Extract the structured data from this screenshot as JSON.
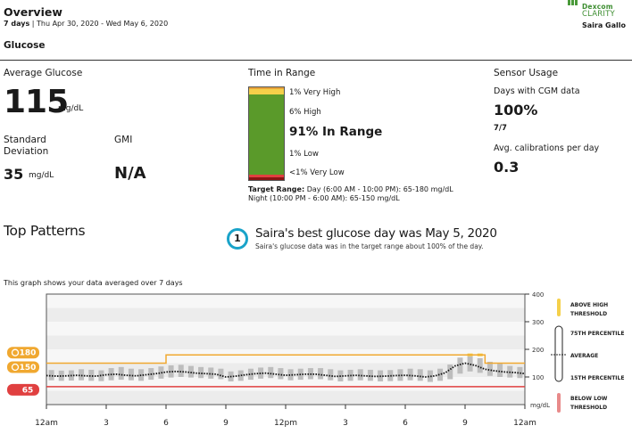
{
  "header": {
    "title": "Overview",
    "range_days": "7 days",
    "range_sep": "|",
    "range_dates": "Thu Apr 30, 2020 - Wed May 6, 2020",
    "logo_line1": "Dexcom",
    "logo_line2": "CLARITY",
    "patient_name": "Saira Gallo",
    "brand_color": "#4a9a3a"
  },
  "section_title": "Glucose",
  "avg_glucose": {
    "label": "Average Glucose",
    "value": "115",
    "unit": "mg/dL"
  },
  "std_dev": {
    "label": "Standard Deviation",
    "value": "35",
    "unit": "mg/dL"
  },
  "gmi": {
    "label": "GMI",
    "value": "N/A"
  },
  "time_in_range": {
    "label": "Time in Range",
    "very_high": "1% Very High",
    "high": "6% High",
    "in_range": "91% In Range",
    "low": "1% Low",
    "very_low": "<1% Very Low",
    "target_label": "Target Range:",
    "target_day": "Day (6:00 AM - 10:00 PM): 65-180 mg/dL",
    "target_night": "Night (10:00 PM - 6:00 AM): 65-150 mg/dL",
    "colors": {
      "very_high": "#e8a33a",
      "high": "#f5d04a",
      "in_range": "#5a9a2a",
      "low": "#e04040",
      "very_low": "#8a1414"
    }
  },
  "sensor_usage": {
    "label": "Sensor Usage",
    "days_label": "Days with CGM data",
    "days_value": "100%",
    "days_count": "7/7",
    "cal_label": "Avg. calibrations per day",
    "cal_value": "0.3"
  },
  "top_patterns": {
    "title": "Top Patterns",
    "badge": "1",
    "headline": "Saira's best glucose day was May 5, 2020",
    "subtext": "Saira's glucose data was in the target range about 100% of the day."
  },
  "graph_note": "This graph shows your data averaged over 7 days",
  "chart_data": {
    "type": "line",
    "x_ticks": [
      "12am",
      "3",
      "6",
      "9",
      "12pm",
      "3",
      "6",
      "9",
      "12am"
    ],
    "y_ticks": [
      "400",
      "300",
      "200",
      "100"
    ],
    "y_unit": "mg/dL",
    "ylim": [
      0,
      400
    ],
    "high_threshold_night": 150,
    "high_threshold_day": 180,
    "low_threshold": 65,
    "threshold_badges": {
      "high_day": "180",
      "high_night": "150",
      "low": "65"
    },
    "hours": [
      0,
      0.5,
      1,
      1.5,
      2,
      2.5,
      3,
      3.5,
      4,
      4.5,
      5,
      5.5,
      6,
      6.5,
      7,
      7.5,
      8,
      8.5,
      9,
      9.5,
      10,
      10.5,
      11,
      11.5,
      12,
      12.5,
      13,
      13.5,
      14,
      14.5,
      15,
      15.5,
      16,
      16.5,
      17,
      17.5,
      18,
      18.5,
      19,
      19.5,
      20,
      20.5,
      21,
      21.5,
      22,
      22.5,
      23,
      23.5,
      24
    ],
    "average": [
      105,
      103,
      104,
      106,
      104,
      103,
      108,
      110,
      106,
      104,
      108,
      112,
      118,
      120,
      118,
      114,
      112,
      110,
      100,
      103,
      108,
      112,
      114,
      110,
      106,
      108,
      110,
      110,
      106,
      102,
      104,
      106,
      104,
      102,
      103,
      105,
      106,
      104,
      100,
      104,
      115,
      140,
      150,
      142,
      128,
      122,
      118,
      116,
      112
    ],
    "p75": [
      125,
      123,
      124,
      128,
      126,
      124,
      132,
      136,
      130,
      128,
      132,
      138,
      142,
      144,
      140,
      136,
      134,
      130,
      120,
      124,
      130,
      134,
      136,
      132,
      128,
      130,
      132,
      132,
      128,
      124,
      126,
      128,
      126,
      124,
      125,
      128,
      130,
      128,
      124,
      130,
      145,
      170,
      175,
      168,
      155,
      148,
      140,
      136,
      132
    ],
    "p15": [
      88,
      86,
      87,
      88,
      86,
      85,
      88,
      90,
      88,
      86,
      90,
      94,
      98,
      100,
      98,
      96,
      94,
      92,
      84,
      86,
      90,
      94,
      96,
      92,
      88,
      90,
      92,
      92,
      88,
      84,
      86,
      88,
      86,
      84,
      85,
      86,
      88,
      86,
      82,
      86,
      92,
      112,
      120,
      115,
      104,
      100,
      98,
      96,
      94
    ],
    "legend": {
      "above_high": "ABOVE HIGH THRESHOLD",
      "p75": "75TH PERCENTILE",
      "average": "AVERAGE",
      "p15": "15TH PERCENTILE",
      "below_low": "BELOW LOW THRESHOLD"
    }
  }
}
